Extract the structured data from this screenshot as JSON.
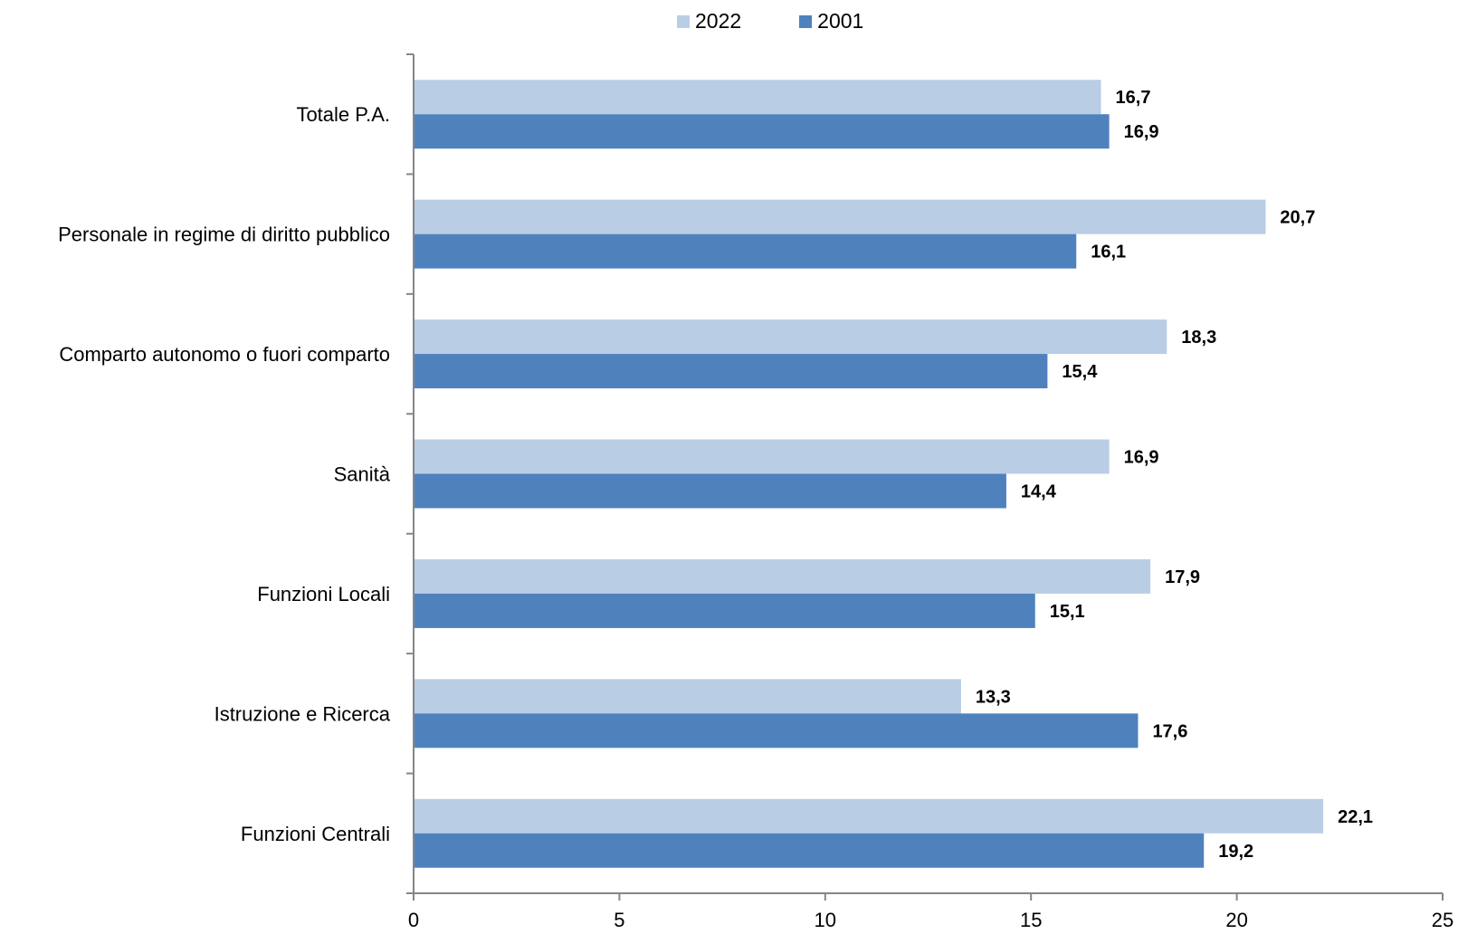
{
  "chart_data": {
    "type": "bar",
    "orientation": "horizontal",
    "categories": [
      "Totale P.A.",
      "Personale in regime di diritto pubblico",
      "Comparto autonomo o fuori comparto",
      "Sanità",
      "Funzioni Locali",
      "Istruzione e Ricerca",
      "Funzioni Centrali"
    ],
    "series": [
      {
        "name": "2022",
        "color": "#b9cde5",
        "values": [
          16.7,
          20.7,
          18.3,
          16.9,
          17.9,
          13.3,
          22.1
        ],
        "labels": [
          "16,7",
          "20,7",
          "18,3",
          "16,9",
          "17,9",
          "13,3",
          "22,1"
        ]
      },
      {
        "name": "2001",
        "color": "#4f81bd",
        "values": [
          16.9,
          16.1,
          15.4,
          14.4,
          15.1,
          17.6,
          19.2
        ],
        "labels": [
          "16,9",
          "16,1",
          "15,4",
          "14,4",
          "15,1",
          "17,6",
          "19,2"
        ]
      }
    ],
    "xlim": [
      0,
      25
    ],
    "xticks": [
      0,
      5,
      10,
      15,
      20,
      25
    ],
    "xtick_labels": [
      "0",
      "5",
      "10",
      "15",
      "20",
      "25"
    ],
    "title": "",
    "xlabel": "",
    "ylabel": "",
    "grid": false,
    "legend_position": "top-center"
  }
}
